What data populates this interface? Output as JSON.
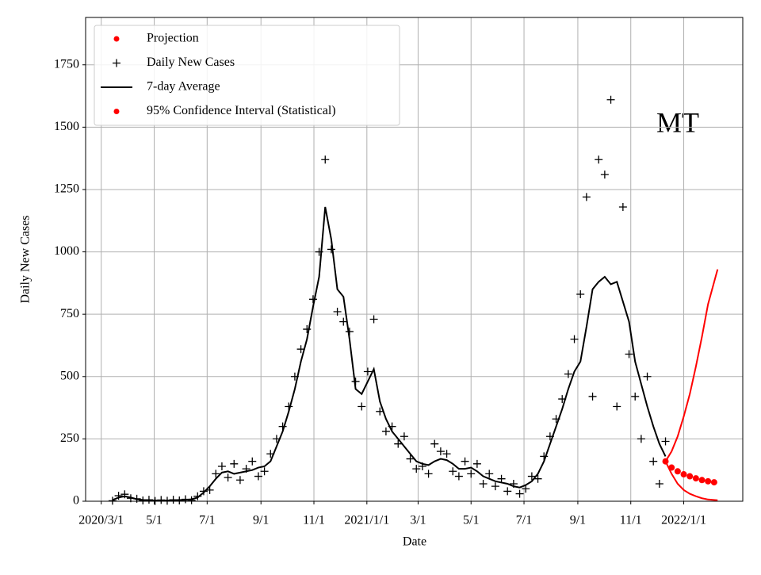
{
  "chart_data": {
    "type": "line",
    "annotation": "MT",
    "xlabel": "Date",
    "ylabel": "Daily New Cases",
    "xlim": [
      "2020-02-12",
      "2022-03-10"
    ],
    "ylim": [
      0,
      1940
    ],
    "xticks": [
      {
        "value": "2020-03-01",
        "label": "2020/3/1"
      },
      {
        "value": "2020-05-01",
        "label": "5/1"
      },
      {
        "value": "2020-07-01",
        "label": "7/1"
      },
      {
        "value": "2020-09-01",
        "label": "9/1"
      },
      {
        "value": "2020-11-01",
        "label": "11/1"
      },
      {
        "value": "2021-01-01",
        "label": "2021/1/1"
      },
      {
        "value": "2021-03-01",
        "label": "3/1"
      },
      {
        "value": "2021-05-01",
        "label": "5/1"
      },
      {
        "value": "2021-07-01",
        "label": "7/1"
      },
      {
        "value": "2021-09-01",
        "label": "9/1"
      },
      {
        "value": "2021-11-01",
        "label": "11/1"
      },
      {
        "value": "2022-01-01",
        "label": "2022/1/1"
      }
    ],
    "yticks": [
      0,
      250,
      500,
      750,
      1000,
      1250,
      1500,
      1750
    ],
    "grid": true,
    "legend": "upper left",
    "series": [
      {
        "name": "Projection",
        "color": "#ff0000",
        "marker": "dot",
        "x": [
          "2021-12-11",
          "2021-12-18",
          "2021-12-25",
          "2022-01-01",
          "2022-01-08",
          "2022-01-15",
          "2022-01-22",
          "2022-01-29",
          "2022-02-05"
        ],
        "values": [
          160,
          135,
          120,
          108,
          100,
          92,
          85,
          80,
          76
        ]
      },
      {
        "name": "Daily New Cases",
        "color": "#000000",
        "marker": "plus",
        "x": [
          "2020-03-14",
          "2020-03-21",
          "2020-03-28",
          "2020-04-04",
          "2020-04-11",
          "2020-04-18",
          "2020-04-25",
          "2020-05-02",
          "2020-05-09",
          "2020-05-16",
          "2020-05-23",
          "2020-05-30",
          "2020-06-06",
          "2020-06-13",
          "2020-06-20",
          "2020-06-27",
          "2020-07-04",
          "2020-07-11",
          "2020-07-18",
          "2020-07-25",
          "2020-08-01",
          "2020-08-08",
          "2020-08-15",
          "2020-08-22",
          "2020-08-29",
          "2020-09-05",
          "2020-09-12",
          "2020-09-19",
          "2020-09-26",
          "2020-10-03",
          "2020-10-10",
          "2020-10-17",
          "2020-10-24",
          "2020-10-31",
          "2020-11-07",
          "2020-11-14",
          "2020-11-21",
          "2020-11-28",
          "2020-12-05",
          "2020-12-12",
          "2020-12-19",
          "2020-12-26",
          "2021-01-02",
          "2021-01-09",
          "2021-01-16",
          "2021-01-23",
          "2021-01-30",
          "2021-02-06",
          "2021-02-13",
          "2021-02-20",
          "2021-02-27",
          "2021-03-06",
          "2021-03-13",
          "2021-03-20",
          "2021-03-27",
          "2021-04-03",
          "2021-04-10",
          "2021-04-17",
          "2021-04-24",
          "2021-05-01",
          "2021-05-08",
          "2021-05-15",
          "2021-05-22",
          "2021-05-29",
          "2021-06-05",
          "2021-06-12",
          "2021-06-19",
          "2021-06-26",
          "2021-07-03",
          "2021-07-10",
          "2021-07-17",
          "2021-07-24",
          "2021-07-31",
          "2021-08-07",
          "2021-08-14",
          "2021-08-21",
          "2021-08-28",
          "2021-09-04",
          "2021-09-11",
          "2021-09-18",
          "2021-09-25",
          "2021-10-02",
          "2021-10-09",
          "2021-10-16",
          "2021-10-23",
          "2021-10-30",
          "2021-11-06",
          "2021-11-13",
          "2021-11-20",
          "2021-11-27",
          "2021-12-04",
          "2021-12-11"
        ],
        "values": [
          2,
          22,
          28,
          12,
          10,
          3,
          6,
          1,
          5,
          2,
          6,
          3,
          8,
          4,
          20,
          40,
          45,
          110,
          140,
          95,
          150,
          85,
          130,
          160,
          100,
          120,
          190,
          250,
          300,
          380,
          500,
          610,
          690,
          810,
          1000,
          1370,
          1010,
          760,
          720,
          680,
          480,
          380,
          520,
          730,
          360,
          280,
          300,
          230,
          260,
          170,
          130,
          140,
          110,
          230,
          200,
          190,
          120,
          100,
          160,
          110,
          150,
          70,
          110,
          60,
          90,
          40,
          70,
          30,
          50,
          100,
          90,
          180,
          260,
          330,
          410,
          510,
          650,
          830,
          1220,
          420,
          1370,
          1310,
          1610,
          380,
          1180,
          590,
          420,
          250,
          500,
          160,
          70,
          240
        ]
      },
      {
        "name": "7-day Average",
        "color": "#000000",
        "marker": "line",
        "x": [
          "2020-03-14",
          "2020-03-21",
          "2020-03-28",
          "2020-04-04",
          "2020-04-11",
          "2020-04-18",
          "2020-04-25",
          "2020-05-02",
          "2020-05-09",
          "2020-05-16",
          "2020-05-23",
          "2020-05-30",
          "2020-06-06",
          "2020-06-13",
          "2020-06-20",
          "2020-06-27",
          "2020-07-04",
          "2020-07-11",
          "2020-07-18",
          "2020-07-25",
          "2020-08-01",
          "2020-08-08",
          "2020-08-15",
          "2020-08-22",
          "2020-08-29",
          "2020-09-05",
          "2020-09-12",
          "2020-09-19",
          "2020-09-26",
          "2020-10-03",
          "2020-10-10",
          "2020-10-17",
          "2020-10-24",
          "2020-10-31",
          "2020-11-07",
          "2020-11-14",
          "2020-11-21",
          "2020-11-28",
          "2020-12-05",
          "2020-12-12",
          "2020-12-19",
          "2020-12-26",
          "2021-01-02",
          "2021-01-09",
          "2021-01-16",
          "2021-01-23",
          "2021-01-30",
          "2021-02-06",
          "2021-02-13",
          "2021-02-20",
          "2021-02-27",
          "2021-03-06",
          "2021-03-13",
          "2021-03-20",
          "2021-03-27",
          "2021-04-03",
          "2021-04-10",
          "2021-04-17",
          "2021-04-24",
          "2021-05-01",
          "2021-05-08",
          "2021-05-15",
          "2021-05-22",
          "2021-05-29",
          "2021-06-05",
          "2021-06-12",
          "2021-06-19",
          "2021-06-26",
          "2021-07-03",
          "2021-07-10",
          "2021-07-17",
          "2021-07-24",
          "2021-07-31",
          "2021-08-07",
          "2021-08-14",
          "2021-08-21",
          "2021-08-28",
          "2021-09-04",
          "2021-09-11",
          "2021-09-18",
          "2021-09-25",
          "2021-10-02",
          "2021-10-09",
          "2021-10-16",
          "2021-10-23",
          "2021-10-30",
          "2021-11-06",
          "2021-11-13",
          "2021-11-20",
          "2021-11-27",
          "2021-12-04",
          "2021-12-11"
        ],
        "values": [
          5,
          15,
          20,
          15,
          8,
          5,
          4,
          3,
          3,
          3,
          4,
          5,
          5,
          8,
          15,
          35,
          60,
          90,
          115,
          120,
          110,
          115,
          120,
          125,
          135,
          140,
          160,
          220,
          280,
          360,
          450,
          560,
          650,
          780,
          900,
          1180,
          1050,
          850,
          820,
          650,
          450,
          430,
          480,
          530,
          400,
          330,
          280,
          250,
          220,
          190,
          160,
          150,
          145,
          160,
          170,
          165,
          150,
          130,
          130,
          135,
          120,
          100,
          90,
          80,
          75,
          70,
          60,
          55,
          65,
          80,
          110,
          160,
          230,
          300,
          370,
          450,
          520,
          560,
          700,
          850,
          880,
          900,
          870,
          880,
          800,
          720,
          560,
          470,
          380,
          300,
          230,
          180
        ]
      },
      {
        "name": "95% Confidence Interval (Statistical)",
        "color": "#ff0000",
        "marker": "interval",
        "x": [
          "2021-12-11",
          "2021-12-18",
          "2021-12-25",
          "2022-01-01",
          "2022-01-08",
          "2022-01-15",
          "2022-01-22",
          "2022-01-29",
          "2022-02-09"
        ],
        "lower": [
          160,
          110,
          70,
          45,
          30,
          20,
          12,
          7,
          4
        ],
        "upper": [
          160,
          200,
          260,
          340,
          430,
          540,
          660,
          790,
          930
        ]
      }
    ]
  }
}
